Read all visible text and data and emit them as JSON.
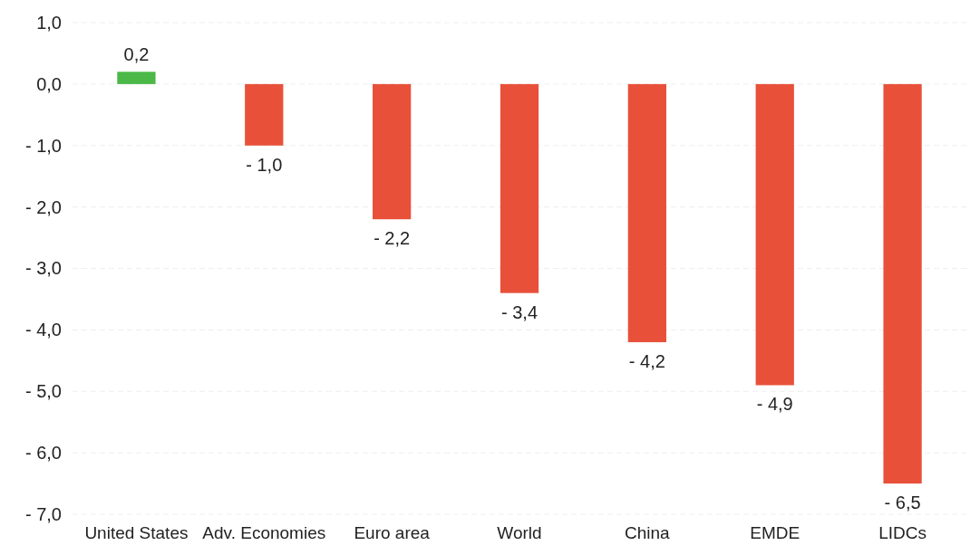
{
  "chart_data": {
    "type": "bar",
    "categories": [
      "United States",
      "Adv. Economies",
      "Euro area",
      "World",
      "China",
      "EMDE",
      "LIDCs"
    ],
    "values": [
      0.2,
      -1.0,
      -2.2,
      -3.4,
      -4.2,
      -4.9,
      -6.5
    ],
    "colors": [
      "#4cb848",
      "#e8503a",
      "#e8503a",
      "#e8503a",
      "#e8503a",
      "#e8503a",
      "#e8503a"
    ],
    "value_labels": [
      "0,2",
      "- 1,0",
      "- 2,2",
      "- 3,4",
      "- 4,2",
      "- 4,9",
      "- 6,5"
    ],
    "ylim": [
      -7,
      1
    ],
    "yticks": [
      {
        "value": 1,
        "label": "1,0"
      },
      {
        "value": 0,
        "label": "0,0"
      },
      {
        "value": -1,
        "label": "- 1,0"
      },
      {
        "value": -2,
        "label": "- 2,0"
      },
      {
        "value": -3,
        "label": "- 3,0"
      },
      {
        "value": -4,
        "label": "- 4,0"
      },
      {
        "value": -5,
        "label": "- 5,0"
      },
      {
        "value": -6,
        "label": "- 6,0"
      },
      {
        "value": -7,
        "label": "- 7,0"
      }
    ],
    "grid": "y"
  }
}
